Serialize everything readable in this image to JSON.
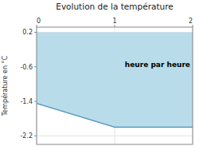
{
  "chart_data": {
    "type": "area",
    "title": "Evolution de la température",
    "y_label": "Température en °C",
    "x": [
      0,
      1,
      2
    ],
    "series": [
      {
        "values": [
          -1.45,
          -2.0,
          -2.0
        ],
        "top": [
          0.2,
          0.2,
          0.2
        ],
        "color": "#b8dcea"
      }
    ],
    "annotations": [
      {
        "text": "heure par heure",
        "x": 1.55,
        "y": -0.55
      }
    ],
    "xlim": [
      0,
      2
    ],
    "ylim": [
      -2.4,
      0.32
    ],
    "xticks": [
      0,
      1,
      2
    ],
    "yticks": [
      0.2,
      -0.6,
      -1.4,
      -2.2
    ],
    "grid": true
  }
}
